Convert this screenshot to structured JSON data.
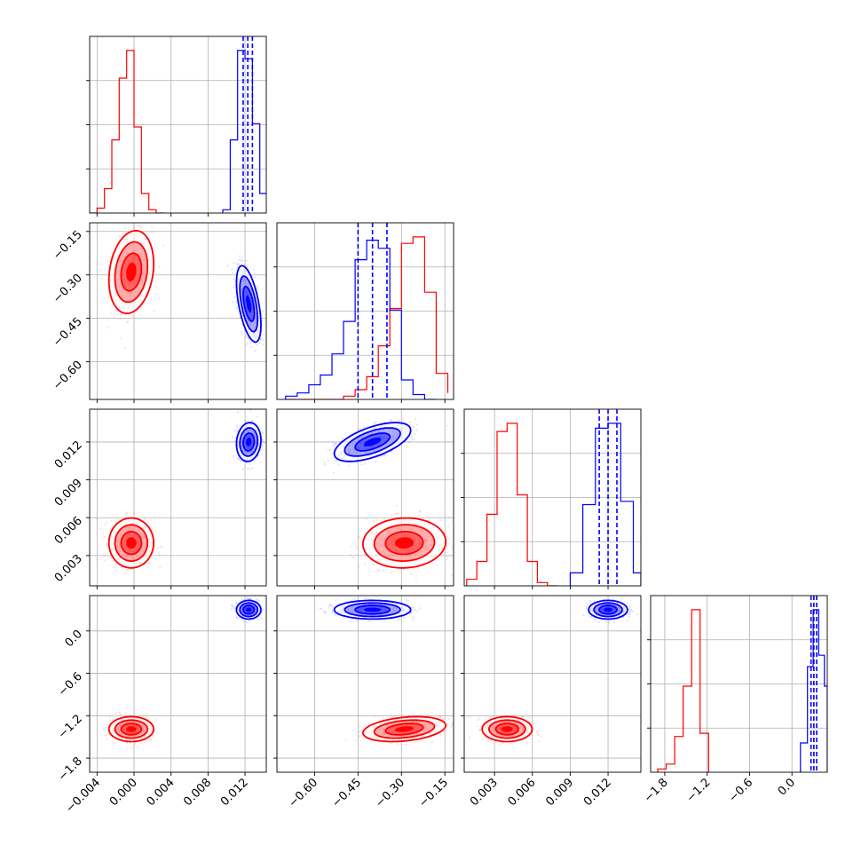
{
  "chart_data": {
    "type": "corner",
    "parameters": [
      {
        "ticks": [
          -0.004,
          0.0,
          0.004,
          0.008,
          0.012
        ],
        "tick_labels": [
          "−0.004",
          "0.000",
          "0.004",
          "0.008",
          "0.012"
        ],
        "range": [
          -0.0048,
          0.0143
        ]
      },
      {
        "ticks": [
          -0.6,
          -0.45,
          -0.3,
          -0.15
        ],
        "tick_labels": [
          "−0.60",
          "−0.45",
          "−0.30",
          "−0.15"
        ],
        "range": [
          -0.73,
          -0.12
        ]
      },
      {
        "ticks": [
          0.003,
          0.006,
          0.009,
          0.012
        ],
        "tick_labels": [
          "0.003",
          "0.006",
          "0.009",
          "0.012"
        ],
        "range": [
          0.0006,
          0.0146
        ]
      },
      {
        "ticks": [
          -1.8,
          -1.2,
          -0.6,
          0.0
        ],
        "tick_labels": [
          "−1.8",
          "−1.2",
          "−0.6",
          "0.0"
        ],
        "range": [
          -2.0,
          0.5
        ]
      }
    ],
    "grid": true,
    "series": [
      {
        "color": "#ff0000",
        "hist": [
          {
            "edges": [
              -0.0048,
              -0.004,
              -0.0032,
              -0.0024,
              -0.0016,
              -0.0008,
              0.0,
              0.0008,
              0.0016,
              0.0024,
              0.0032
            ],
            "values": [
              0.0,
              0.03,
              0.15,
              0.45,
              0.83,
              1.0,
              0.53,
              0.12,
              0.02,
              0.0
            ]
          },
          {
            "edges": [
              -0.7,
              -0.66,
              -0.62,
              -0.58,
              -0.54,
              -0.5,
              -0.46,
              -0.42,
              -0.38,
              -0.34,
              -0.3,
              -0.26,
              -0.22,
              -0.18,
              -0.14
            ],
            "values": [
              0.0,
              0.0,
              0.0,
              0.0,
              0.0,
              0.02,
              0.06,
              0.14,
              0.33,
              0.56,
              0.96,
              1.0,
              0.66,
              0.16,
              0.04
            ]
          },
          {
            "edges": [
              0.0008,
              0.0016,
              0.0024,
              0.0032,
              0.004,
              0.0048,
              0.0056,
              0.0064,
              0.0072,
              0.008
            ],
            "values": [
              0.04,
              0.15,
              0.44,
              0.95,
              1.0,
              0.56,
              0.15,
              0.02,
              0.0
            ]
          },
          {
            "edges": [
              -1.9,
              -1.78,
              -1.66,
              -1.54,
              -1.42,
              -1.3,
              -1.18
            ],
            "values": [
              0.02,
              0.05,
              0.22,
              0.53,
              1.0,
              0.24
            ]
          }
        ],
        "center": [
          -0.0003,
          -0.29,
          0.004,
          -1.39
        ],
        "sd": [
          0.0011,
          0.065,
          0.0009,
          0.08
        ],
        "corr": [
          [
            1,
            0.2,
            0,
            0
          ],
          [
            0.2,
            1,
            0.05,
            0.3
          ],
          [
            0,
            0.05,
            1,
            0
          ],
          [
            0,
            0.3,
            0,
            1
          ]
        ]
      },
      {
        "color": "#0000ff",
        "hist": [
          {
            "edges": [
              0.0096,
              0.0104,
              0.0112,
              0.012,
              0.0128,
              0.0136,
              0.0144
            ],
            "values": [
              0.02,
              0.45,
              1.0,
              0.95,
              0.55,
              0.12
            ]
          },
          {
            "edges": [
              -0.7,
              -0.66,
              -0.62,
              -0.58,
              -0.54,
              -0.5,
              -0.46,
              -0.42,
              -0.38,
              -0.34,
              -0.3,
              -0.26,
              -0.22,
              -0.18
            ],
            "values": [
              0.02,
              0.04,
              0.09,
              0.15,
              0.28,
              0.48,
              0.86,
              0.98,
              0.93,
              0.55,
              0.12,
              0.03,
              0.0
            ]
          },
          {
            "edges": [
              0.009,
              0.01,
              0.011,
              0.012,
              0.013,
              0.014,
              0.0146
            ],
            "values": [
              0.08,
              0.5,
              0.97,
              1.0,
              0.52,
              0.08
            ]
          },
          {
            "edges": [
              0.12,
              0.22,
              0.3,
              0.38,
              0.46,
              0.5
            ],
            "values": [
              0.18,
              0.65,
              1.0,
              0.72,
              0.53
            ]
          }
        ],
        "quantiles": [
          [
            0.0118,
            0.0123,
            0.0128
          ],
          [
            -0.45,
            -0.4,
            -0.35
          ],
          [
            0.0113,
            0.012,
            0.0127
          ],
          [
            0.27,
            0.31,
            0.35
          ]
        ],
        "center": [
          0.0124,
          -0.4,
          0.012,
          0.3
        ],
        "sd": [
          0.0006,
          0.06,
          0.0007,
          0.06
        ],
        "corr": [
          [
            1,
            -0.55,
            0.1,
            0
          ],
          [
            -0.55,
            1,
            0.6,
            0
          ],
          [
            0.1,
            0.6,
            1,
            0
          ],
          [
            0,
            0,
            0,
            1
          ]
        ]
      }
    ]
  }
}
